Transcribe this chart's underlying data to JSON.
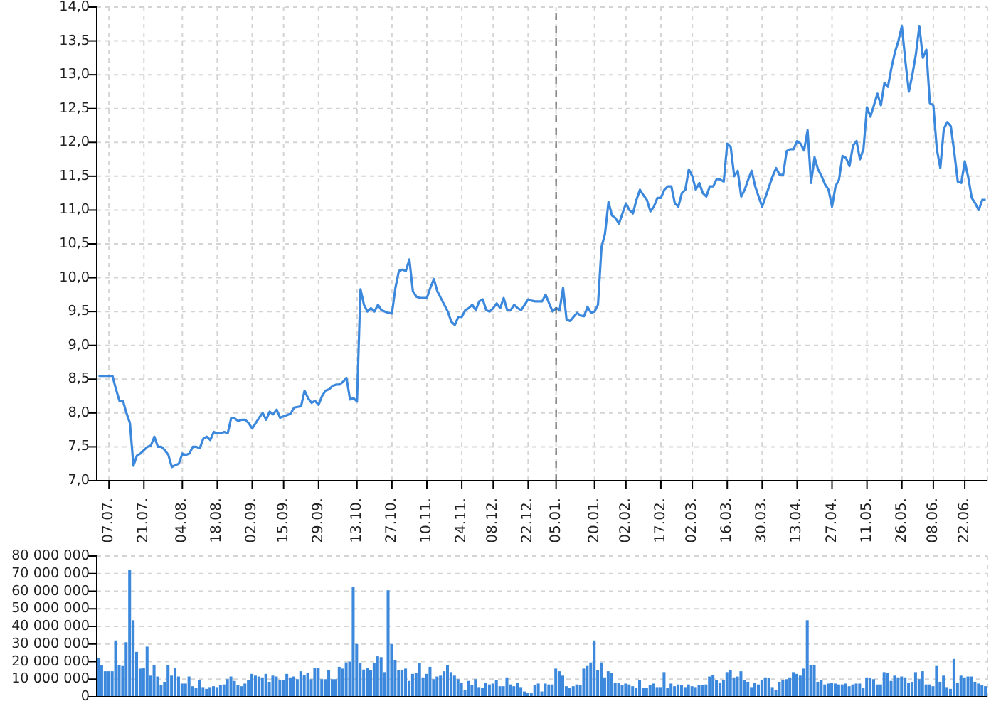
{
  "chart_data": [
    {
      "type": "line",
      "categories": [
        null,
        null,
        null,
        "07.07.",
        null,
        null,
        null,
        null,
        null,
        null,
        null,
        null,
        null,
        "21.07.",
        null,
        null,
        null,
        null,
        null,
        null,
        null,
        null,
        null,
        null,
        "04.08.",
        null,
        null,
        null,
        null,
        null,
        null,
        null,
        null,
        null,
        "18.08.",
        null,
        null,
        null,
        null,
        null,
        null,
        null,
        null,
        null,
        "02.09.",
        null,
        null,
        null,
        null,
        null,
        null,
        null,
        null,
        "15.09.",
        null,
        null,
        null,
        null,
        null,
        null,
        null,
        null,
        null,
        "29.09.",
        null,
        null,
        null,
        null,
        null,
        null,
        null,
        null,
        null,
        null,
        "13.10.",
        null,
        null,
        null,
        null,
        null,
        null,
        null,
        null,
        null,
        "27.10.",
        null,
        null,
        null,
        null,
        null,
        null,
        null,
        null,
        null,
        "10.11.",
        null,
        null,
        null,
        null,
        null,
        null,
        null,
        null,
        null,
        "24.11.",
        null,
        null,
        null,
        null,
        null,
        null,
        null,
        null,
        "08.12.",
        null,
        null,
        null,
        null,
        null,
        null,
        null,
        null,
        null,
        "22.12.",
        null,
        null,
        null,
        null,
        null,
        null,
        null,
        "05.01.",
        null,
        null,
        null,
        null,
        null,
        null,
        null,
        null,
        null,
        null,
        "20.01.",
        null,
        null,
        null,
        null,
        null,
        null,
        null,
        null,
        "02.02.",
        null,
        null,
        null,
        null,
        null,
        null,
        null,
        null,
        null,
        "17.02.",
        null,
        null,
        null,
        null,
        null,
        null,
        null,
        null,
        "02.03.",
        null,
        null,
        null,
        null,
        null,
        null,
        null,
        null,
        null,
        "16.03.",
        null,
        null,
        null,
        null,
        null,
        null,
        null,
        null,
        null,
        "30.03.",
        null,
        null,
        null,
        null,
        null,
        null,
        null,
        null,
        null,
        "13.04.",
        null,
        null,
        null,
        null,
        null,
        null,
        null,
        null,
        null,
        "27.04.",
        null,
        null,
        null,
        null,
        null,
        null,
        null,
        null,
        null,
        "11.05.",
        null,
        null,
        null,
        null,
        null,
        null,
        null,
        null,
        null,
        "26.05.",
        null,
        null,
        null,
        null,
        null,
        null,
        null,
        null,
        "08.06.",
        null,
        null,
        null,
        null,
        null,
        null,
        null,
        null,
        "22.06.",
        null,
        null,
        null,
        null,
        null,
        null
      ],
      "series": [
        {
          "color": "#3b88dc",
          "values": [
            8.55,
            8.55,
            8.55,
            8.55,
            8.55,
            8.35,
            8.18,
            8.18,
            8.0,
            7.85,
            7.22,
            7.37,
            7.4,
            7.45,
            7.5,
            7.52,
            7.65,
            7.5,
            7.5,
            7.45,
            7.38,
            7.2,
            7.23,
            7.25,
            7.4,
            7.38,
            7.4,
            7.5,
            7.5,
            7.48,
            7.62,
            7.65,
            7.6,
            7.72,
            7.7,
            7.7,
            7.72,
            7.7,
            7.93,
            7.92,
            7.88,
            7.9,
            7.9,
            7.85,
            7.77,
            7.85,
            7.93,
            8.0,
            7.9,
            8.02,
            7.98,
            8.05,
            7.93,
            7.95,
            7.97,
            7.99,
            8.08,
            8.09,
            8.1,
            8.33,
            8.22,
            8.15,
            8.18,
            8.12,
            8.25,
            8.33,
            8.35,
            8.4,
            8.42,
            8.42,
            8.46,
            8.52,
            8.2,
            8.22,
            8.17,
            9.83,
            9.6,
            9.5,
            9.55,
            9.5,
            9.6,
            9.52,
            9.5,
            9.48,
            9.47,
            9.85,
            10.1,
            10.12,
            10.1,
            10.27,
            9.8,
            9.72,
            9.7,
            9.7,
            9.7,
            9.85,
            9.98,
            9.8,
            9.7,
            9.6,
            9.5,
            9.35,
            9.3,
            9.42,
            9.42,
            9.52,
            9.55,
            9.6,
            9.52,
            9.65,
            9.68,
            9.52,
            9.5,
            9.55,
            9.62,
            9.55,
            9.7,
            9.52,
            9.52,
            9.6,
            9.55,
            9.52,
            9.6,
            9.68,
            9.66,
            9.65,
            9.65,
            9.65,
            9.75,
            9.62,
            9.5,
            9.55,
            9.52,
            9.85,
            9.38,
            9.36,
            9.42,
            9.48,
            9.44,
            9.43,
            9.57,
            9.48,
            9.5,
            9.6,
            10.45,
            10.65,
            11.12,
            10.92,
            10.88,
            10.8,
            10.95,
            11.1,
            11.0,
            10.95,
            11.15,
            11.3,
            11.22,
            11.15,
            10.98,
            11.05,
            11.18,
            11.18,
            11.3,
            11.35,
            11.35,
            11.1,
            11.05,
            11.25,
            11.3,
            11.6,
            11.5,
            11.3,
            11.4,
            11.25,
            11.2,
            11.35,
            11.35,
            11.46,
            11.45,
            11.42,
            11.98,
            11.93,
            11.5,
            11.58,
            11.2,
            11.3,
            11.45,
            11.58,
            11.35,
            11.2,
            11.05,
            11.2,
            11.35,
            11.5,
            11.62,
            11.52,
            11.52,
            11.87,
            11.9,
            11.9,
            12.02,
            11.98,
            11.88,
            12.18,
            11.4,
            11.78,
            11.6,
            11.5,
            11.38,
            11.3,
            11.05,
            11.35,
            11.45,
            11.8,
            11.77,
            11.65,
            11.95,
            12.02,
            11.75,
            11.9,
            12.52,
            12.38,
            12.55,
            12.72,
            12.55,
            12.88,
            12.82,
            13.1,
            13.33,
            13.5,
            13.72,
            13.2,
            12.75,
            13.0,
            13.3,
            13.72,
            13.25,
            13.37,
            12.58,
            12.55,
            11.9,
            11.62,
            12.2,
            12.3,
            12.24,
            11.85,
            11.42,
            11.4,
            11.72,
            11.48,
            11.18,
            11.1,
            11.0,
            11.15,
            11.15
          ]
        }
      ],
      "ylim": [
        7,
        14
      ],
      "yticks": [
        {
          "value": 7,
          "label": "7,0"
        },
        {
          "value": 7.5,
          "label": "7,5"
        },
        {
          "value": 8,
          "label": "8,0"
        },
        {
          "value": 8.5,
          "label": "8,5"
        },
        {
          "value": 9,
          "label": "9,0"
        },
        {
          "value": 9.5,
          "label": "9,5"
        },
        {
          "value": 10,
          "label": "10,0"
        },
        {
          "value": 10.5,
          "label": "10,5"
        },
        {
          "value": 11,
          "label": "11,0"
        },
        {
          "value": 11.5,
          "label": "11,5"
        },
        {
          "value": 12,
          "label": "12,0"
        },
        {
          "value": 12.5,
          "label": "12,5"
        },
        {
          "value": 13,
          "label": "13,0"
        },
        {
          "value": 13.5,
          "label": "13,5"
        },
        {
          "value": 14,
          "label": "14,0"
        }
      ],
      "grid": true,
      "ref_lines": [
        {
          "axis": "x",
          "value": "05.01.",
          "color": "#555555",
          "line_style": "dashed"
        }
      ]
    },
    {
      "type": "bar",
      "categories": [
        null,
        null,
        null,
        "07.07.",
        null,
        null,
        null,
        null,
        null,
        null,
        null,
        null,
        null,
        "21.07.",
        null,
        null,
        null,
        null,
        null,
        null,
        null,
        null,
        null,
        null,
        "04.08.",
        null,
        null,
        null,
        null,
        null,
        null,
        null,
        null,
        null,
        "18.08.",
        null,
        null,
        null,
        null,
        null,
        null,
        null,
        null,
        null,
        "02.09.",
        null,
        null,
        null,
        null,
        null,
        null,
        null,
        null,
        "15.09.",
        null,
        null,
        null,
        null,
        null,
        null,
        null,
        null,
        null,
        "29.09.",
        null,
        null,
        null,
        null,
        null,
        null,
        null,
        null,
        null,
        null,
        "13.10.",
        null,
        null,
        null,
        null,
        null,
        null,
        null,
        null,
        null,
        "27.10.",
        null,
        null,
        null,
        null,
        null,
        null,
        null,
        null,
        null,
        "10.11.",
        null,
        null,
        null,
        null,
        null,
        null,
        null,
        null,
        null,
        "24.11.",
        null,
        null,
        null,
        null,
        null,
        null,
        null,
        null,
        "08.12.",
        null,
        null,
        null,
        null,
        null,
        null,
        null,
        null,
        null,
        "22.12.",
        null,
        null,
        null,
        null,
        null,
        null,
        null,
        "05.01.",
        null,
        null,
        null,
        null,
        null,
        null,
        null,
        null,
        null,
        null,
        "20.01.",
        null,
        null,
        null,
        null,
        null,
        null,
        null,
        null,
        "02.02.",
        null,
        null,
        null,
        null,
        null,
        null,
        null,
        null,
        null,
        "17.02.",
        null,
        null,
        null,
        null,
        null,
        null,
        null,
        null,
        "02.03.",
        null,
        null,
        null,
        null,
        null,
        null,
        null,
        null,
        null,
        "16.03.",
        null,
        null,
        null,
        null,
        null,
        null,
        null,
        null,
        null,
        "30.03.",
        null,
        null,
        null,
        null,
        null,
        null,
        null,
        null,
        null,
        "13.04.",
        null,
        null,
        null,
        null,
        null,
        null,
        null,
        null,
        null,
        "27.04.",
        null,
        null,
        null,
        null,
        null,
        null,
        null,
        null,
        null,
        "11.05.",
        null,
        null,
        null,
        null,
        null,
        null,
        null,
        null,
        null,
        "26.05.",
        null,
        null,
        null,
        null,
        null,
        null,
        null,
        null,
        "08.06.",
        null,
        null,
        null,
        null,
        null,
        null,
        null,
        null,
        "22.06.",
        null,
        null,
        null,
        null,
        null,
        null
      ],
      "series": [
        {
          "color": "#3b88dc",
          "values": [
            22000000,
            18000000,
            14500000,
            14500000,
            14500000,
            32000000,
            18000000,
            17500000,
            31000000,
            72000000,
            43500000,
            25500000,
            16000000,
            16500000,
            28500000,
            12000000,
            18000000,
            11500000,
            6500000,
            8500000,
            18000000,
            12000000,
            16500000,
            11500000,
            7500000,
            7500000,
            11500000,
            6000000,
            5000000,
            9500000,
            5500000,
            4500000,
            5500000,
            6000000,
            5500000,
            6500000,
            7000000,
            10000000,
            11500000,
            9000000,
            6500000,
            6000000,
            7500000,
            9500000,
            13000000,
            12000000,
            11500000,
            11000000,
            13000000,
            8500000,
            12000000,
            11500000,
            9500000,
            9500000,
            13000000,
            11000000,
            11500000,
            10000000,
            14500000,
            12500000,
            13500000,
            10000000,
            16500000,
            16500000,
            10000000,
            10000000,
            15000000,
            10000000,
            10000000,
            17000000,
            16000000,
            19500000,
            20000000,
            62500000,
            30000000,
            19000000,
            15500000,
            16500000,
            15000000,
            19000000,
            23000000,
            22500000,
            14000000,
            60500000,
            30000000,
            21000000,
            15000000,
            15000000,
            16000000,
            9000000,
            13000000,
            13500000,
            19000000,
            11000000,
            13000000,
            17000000,
            10000000,
            11500000,
            12000000,
            14500000,
            18000000,
            14000000,
            12000000,
            10000000,
            8000000,
            4000000,
            9000000,
            6500000,
            10000000,
            5500000,
            5000000,
            8000000,
            7000000,
            7500000,
            9500000,
            6000000,
            6000000,
            11000000,
            7000000,
            6000000,
            8000000,
            5500000,
            3000000,
            2000000,
            2000000,
            6500000,
            7500000,
            3000000,
            7500000,
            7000000,
            7000000,
            16000000,
            14500000,
            12000000,
            6000000,
            5000000,
            6000000,
            7000000,
            6500000,
            16000000,
            17500000,
            19500000,
            32000000,
            15000000,
            19500000,
            11000000,
            14500000,
            13500000,
            8000000,
            8000000,
            6500000,
            7500000,
            7000000,
            6000000,
            5000000,
            9500000,
            5000000,
            5000000,
            6500000,
            7500000,
            5500000,
            5500000,
            14000000,
            5000000,
            7500000,
            6000000,
            7000000,
            6500000,
            5500000,
            7000000,
            6000000,
            5500000,
            6500000,
            6500000,
            7000000,
            11500000,
            12500000,
            9500000,
            8000000,
            9500000,
            14000000,
            15000000,
            11000000,
            11500000,
            14500000,
            9500000,
            8500000,
            5500000,
            8000000,
            7000000,
            9500000,
            11000000,
            10500000,
            5500000,
            4000000,
            8500000,
            9500000,
            10000000,
            11000000,
            14000000,
            13000000,
            12000000,
            16000000,
            43500000,
            18000000,
            18000000,
            8500000,
            9500000,
            7000000,
            7500000,
            8000000,
            7500000,
            7000000,
            7000000,
            7500000,
            6000000,
            7000000,
            7500000,
            7500000,
            5000000,
            11000000,
            10500000,
            10000000,
            7000000,
            7000000,
            14000000,
            13500000,
            9000000,
            12000000,
            11000000,
            11500000,
            11000000,
            8000000,
            8500000,
            14000000,
            10000000,
            14500000,
            7000000,
            7000000,
            6000000,
            17500000,
            8500000,
            12000000,
            5500000,
            4500000,
            21500000,
            8000000,
            12000000,
            11000000,
            11500000,
            11500000,
            8500000,
            7500000,
            6500000,
            6000000
          ]
        }
      ],
      "ylim": [
        0,
        80000000
      ],
      "yticks": [
        {
          "value": 0,
          "label": "0"
        },
        {
          "value": 10000000,
          "label": "10 000 000"
        },
        {
          "value": 20000000,
          "label": "20 000 000"
        },
        {
          "value": 30000000,
          "label": "30 000 000"
        },
        {
          "value": 40000000,
          "label": "40 000 000"
        },
        {
          "value": 50000000,
          "label": "50 000 000"
        },
        {
          "value": 60000000,
          "label": "60 000 000"
        },
        {
          "value": 70000000,
          "label": "70 000 000"
        },
        {
          "value": 80000000,
          "label": "80 000 000"
        }
      ],
      "grid": true,
      "tick_labels": "y"
    }
  ]
}
